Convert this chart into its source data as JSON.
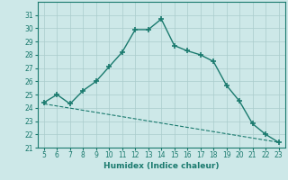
{
  "title": "",
  "xlabel": "Humidex (Indice chaleur)",
  "line1_x": [
    5,
    6,
    7,
    8,
    9,
    10,
    11,
    12,
    13,
    14,
    15,
    16,
    17,
    18,
    19,
    20,
    21,
    22,
    23
  ],
  "line1_y": [
    24.4,
    25.0,
    24.3,
    25.3,
    26.0,
    27.1,
    28.2,
    29.9,
    29.9,
    30.7,
    28.7,
    28.3,
    28.0,
    27.5,
    25.7,
    24.5,
    22.8,
    22.0,
    21.4
  ],
  "line2_x": [
    5,
    23
  ],
  "line2_y": [
    24.3,
    21.4
  ],
  "line_color": "#1a7a6e",
  "bg_color": "#cde8e8",
  "grid_color": "#aacccc",
  "ylim": [
    21,
    32
  ],
  "xlim": [
    4.5,
    23.5
  ],
  "yticks": [
    21,
    22,
    23,
    24,
    25,
    26,
    27,
    28,
    29,
    30,
    31
  ],
  "xticks": [
    5,
    6,
    7,
    8,
    9,
    10,
    11,
    12,
    13,
    14,
    15,
    16,
    17,
    18,
    19,
    20,
    21,
    22,
    23
  ]
}
